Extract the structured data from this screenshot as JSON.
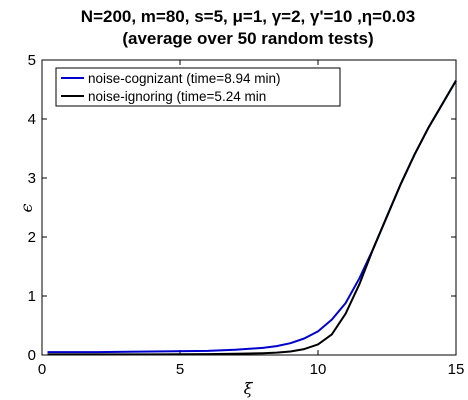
{
  "chart_data": {
    "type": "line",
    "title_line1": "N=200, m=80, s=5, μ=1, γ=2, γ'=10 ,η=0.03",
    "title_line2": "(average over 50 random tests)",
    "xlabel": "ξ",
    "ylabel": "ϵ",
    "xlim": [
      0,
      15
    ],
    "ylim": [
      0,
      5
    ],
    "xticks": [
      0,
      5,
      10,
      15
    ],
    "yticks": [
      0,
      1,
      2,
      3,
      4,
      5
    ],
    "xtick_labels": [
      "0",
      "5",
      "10",
      "15"
    ],
    "ytick_labels": [
      "0",
      "1",
      "2",
      "3",
      "4",
      "5"
    ],
    "grid": false,
    "legend_position": "top-left",
    "series": [
      {
        "name": "noise-cognizant (time=8.94 min)",
        "color": "#0000cc",
        "x": [
          0.2,
          2,
          4,
          6,
          7,
          8,
          8.5,
          9,
          9.5,
          10,
          10.5,
          11,
          11.5,
          12,
          12.5,
          13,
          13.5,
          14,
          14.5,
          15
        ],
        "y": [
          0.05,
          0.05,
          0.06,
          0.07,
          0.09,
          0.12,
          0.15,
          0.2,
          0.28,
          0.4,
          0.6,
          0.88,
          1.3,
          1.8,
          2.35,
          2.9,
          3.4,
          3.85,
          4.25,
          4.65
        ]
      },
      {
        "name": "noise-ignoring   (time=5.24 min",
        "color": "#000000",
        "x": [
          0.2,
          2,
          4,
          6,
          7,
          8,
          8.5,
          9,
          9.5,
          10,
          10.5,
          11,
          11.5,
          12,
          12.5,
          13,
          13.5,
          14,
          14.5,
          15
        ],
        "y": [
          0.01,
          0.01,
          0.01,
          0.015,
          0.02,
          0.03,
          0.04,
          0.06,
          0.1,
          0.18,
          0.35,
          0.7,
          1.2,
          1.8,
          2.35,
          2.9,
          3.4,
          3.85,
          4.25,
          4.65
        ]
      }
    ]
  }
}
